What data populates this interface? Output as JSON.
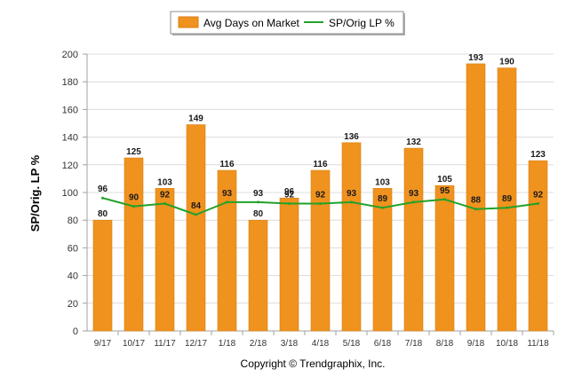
{
  "colors": {
    "bar": "#F0921E",
    "bar_stroke": "#D97E10",
    "line": "#22A229",
    "grid": "#DCDCDC",
    "axis": "#A0A0A0"
  },
  "chart_data": {
    "type": "bar",
    "ylabel": "SP/Orig. LP %",
    "xlabel": "",
    "ylim": [
      0,
      200
    ],
    "ytick_step": 20,
    "grid": "horizontal",
    "legend_position": "top-center",
    "categories": [
      "9/17",
      "10/17",
      "11/17",
      "12/17",
      "1/18",
      "2/18",
      "3/18",
      "4/18",
      "5/18",
      "6/18",
      "7/18",
      "8/18",
      "9/18",
      "10/18",
      "11/18"
    ],
    "series": [
      {
        "name": "Avg Days on Market",
        "kind": "bar",
        "values": [
          80,
          125,
          103,
          149,
          116,
          80,
          96,
          116,
          136,
          103,
          132,
          105,
          193,
          190,
          123
        ]
      },
      {
        "name": "SP/Orig LP %",
        "kind": "line",
        "values": [
          96,
          90,
          92,
          84,
          93,
          93,
          92,
          92,
          93,
          89,
          93,
          95,
          88,
          89,
          92
        ]
      }
    ]
  },
  "footer": {
    "copyright": "Copyright © Trendgraphix, Inc."
  }
}
